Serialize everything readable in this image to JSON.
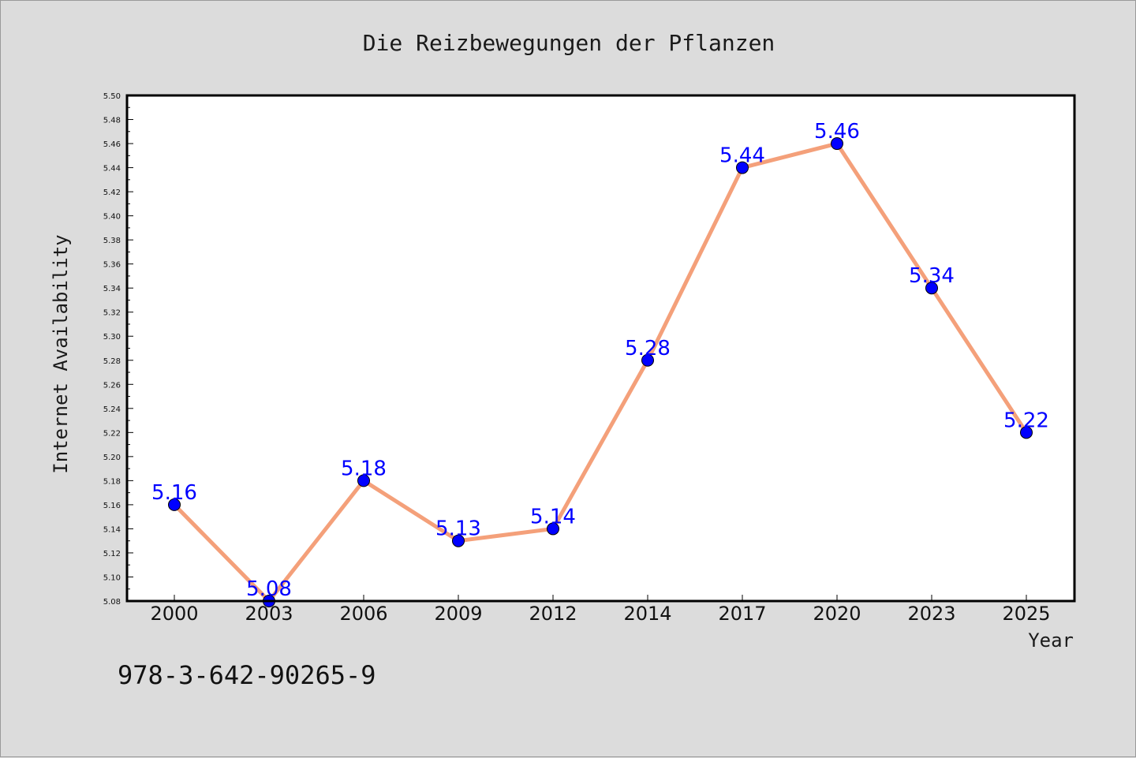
{
  "chart_data": {
    "type": "line",
    "title": "Die Reizbewegungen der Pflanzen",
    "xlabel": "Year",
    "ylabel": "Internet Availability",
    "categories": [
      "2000",
      "2003",
      "2006",
      "2009",
      "2012",
      "2014",
      "2017",
      "2020",
      "2023",
      "2025"
    ],
    "series": [
      {
        "values": [
          5.16,
          5.08,
          5.18,
          5.13,
          5.14,
          5.28,
          5.44,
          5.46,
          5.34,
          5.22
        ]
      }
    ],
    "data_labels": [
      "5.16",
      "5.08",
      "5.18",
      "5.13",
      "5.14",
      "5.28",
      "5.44",
      "5.46",
      "5.34",
      "5.22"
    ],
    "ylim": [
      5.08,
      5.5
    ],
    "yticks": [
      "5.08",
      "5.10",
      "5.12",
      "5.14",
      "5.16",
      "5.18",
      "5.20",
      "5.22",
      "5.24",
      "5.26",
      "5.28",
      "5.30",
      "5.32",
      "5.34",
      "5.36",
      "5.38",
      "5.40",
      "5.42",
      "5.44",
      "5.46",
      "5.48",
      "5.50"
    ],
    "grid": false,
    "legend": "none"
  },
  "caption": "978-3-642-90265-9",
  "colors": {
    "line": "#f4a07a",
    "marker": "#0000ff",
    "data_label": "#0000ff",
    "background": "#dcdcdc",
    "plot_background": "#ffffff"
  }
}
